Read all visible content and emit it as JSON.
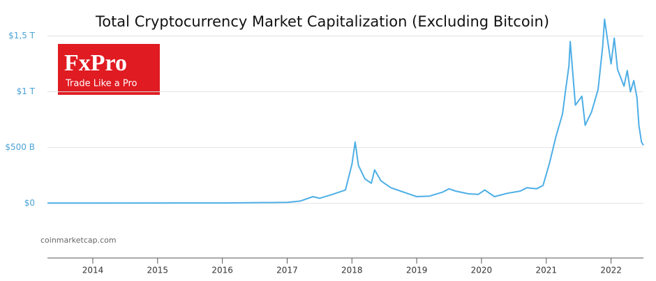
{
  "chart_data": {
    "type": "line",
    "title": "Total Cryptocurrency Market Capitalization (Excluding Bitcoin)",
    "source": "coinmarketcap.com",
    "logo": {
      "brand": "FxPro",
      "tagline": "Trade Like a Pro"
    },
    "color": "#4daee6",
    "x": [
      2013.3,
      2016.0,
      2017.0,
      2017.2,
      2017.4,
      2017.5,
      2017.7,
      2017.9,
      2018.0,
      2018.05,
      2018.1,
      2018.2,
      2018.3,
      2018.35,
      2018.45,
      2018.6,
      2018.75,
      2018.9,
      2019.0,
      2019.2,
      2019.4,
      2019.5,
      2019.6,
      2019.8,
      2019.95,
      2020.05,
      2020.2,
      2020.4,
      2020.6,
      2020.7,
      2020.85,
      2020.95,
      2021.05,
      2021.15,
      2021.25,
      2021.3,
      2021.35,
      2021.37,
      2021.45,
      2021.55,
      2021.6,
      2021.7,
      2021.8,
      2021.87,
      2021.9,
      2021.95,
      2022.0,
      2022.05,
      2022.1,
      2022.2,
      2022.25,
      2022.3,
      2022.35,
      2022.4,
      2022.43,
      2022.47,
      2022.5
    ],
    "values": [
      2,
      3,
      8,
      20,
      60,
      45,
      80,
      120,
      350,
      550,
      340,
      220,
      180,
      300,
      200,
      140,
      110,
      80,
      60,
      65,
      100,
      130,
      110,
      85,
      80,
      120,
      60,
      90,
      110,
      140,
      130,
      160,
      360,
      600,
      800,
      1020,
      1230,
      1450,
      880,
      960,
      700,
      820,
      1020,
      1400,
      1650,
      1450,
      1250,
      1480,
      1200,
      1050,
      1190,
      1000,
      1100,
      950,
      700,
      550,
      520
    ],
    "xlim": [
      2013.3,
      2022.5
    ],
    "xticks": [
      2014,
      2015,
      2016,
      2017,
      2018,
      2019,
      2020,
      2021,
      2022
    ],
    "ylim": [
      -490,
      1700
    ],
    "yticks": [
      {
        "value": 0,
        "label": "$0"
      },
      {
        "value": 500,
        "label": "$500 B"
      },
      {
        "value": 1000,
        "label": "$1 T"
      },
      {
        "value": 1500,
        "label": "$1,5 T"
      }
    ],
    "grid": true
  }
}
